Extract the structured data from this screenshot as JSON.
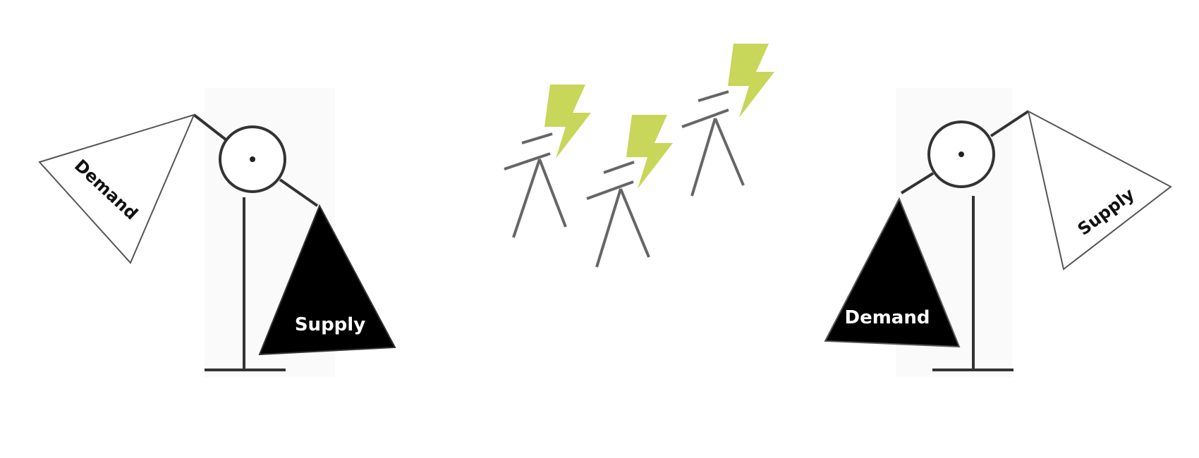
{
  "left_scale": {
    "upper_pan_label": "Demand",
    "lower_pan_label": "Supply"
  },
  "right_scale": {
    "upper_pan_label": "Supply",
    "lower_pan_label": "Demand"
  },
  "colors": {
    "ink": "#333333",
    "heavy_pan": "#000000",
    "light_pan": "#ffffff",
    "bolt": "#c8d65a",
    "tower": "#666666",
    "heavy_pan_text": "#ffffff",
    "light_pan_text": "#111111"
  },
  "icons": [
    "balance-scale-icon",
    "power-pylon-icon",
    "lightning-bolt-icon"
  ]
}
